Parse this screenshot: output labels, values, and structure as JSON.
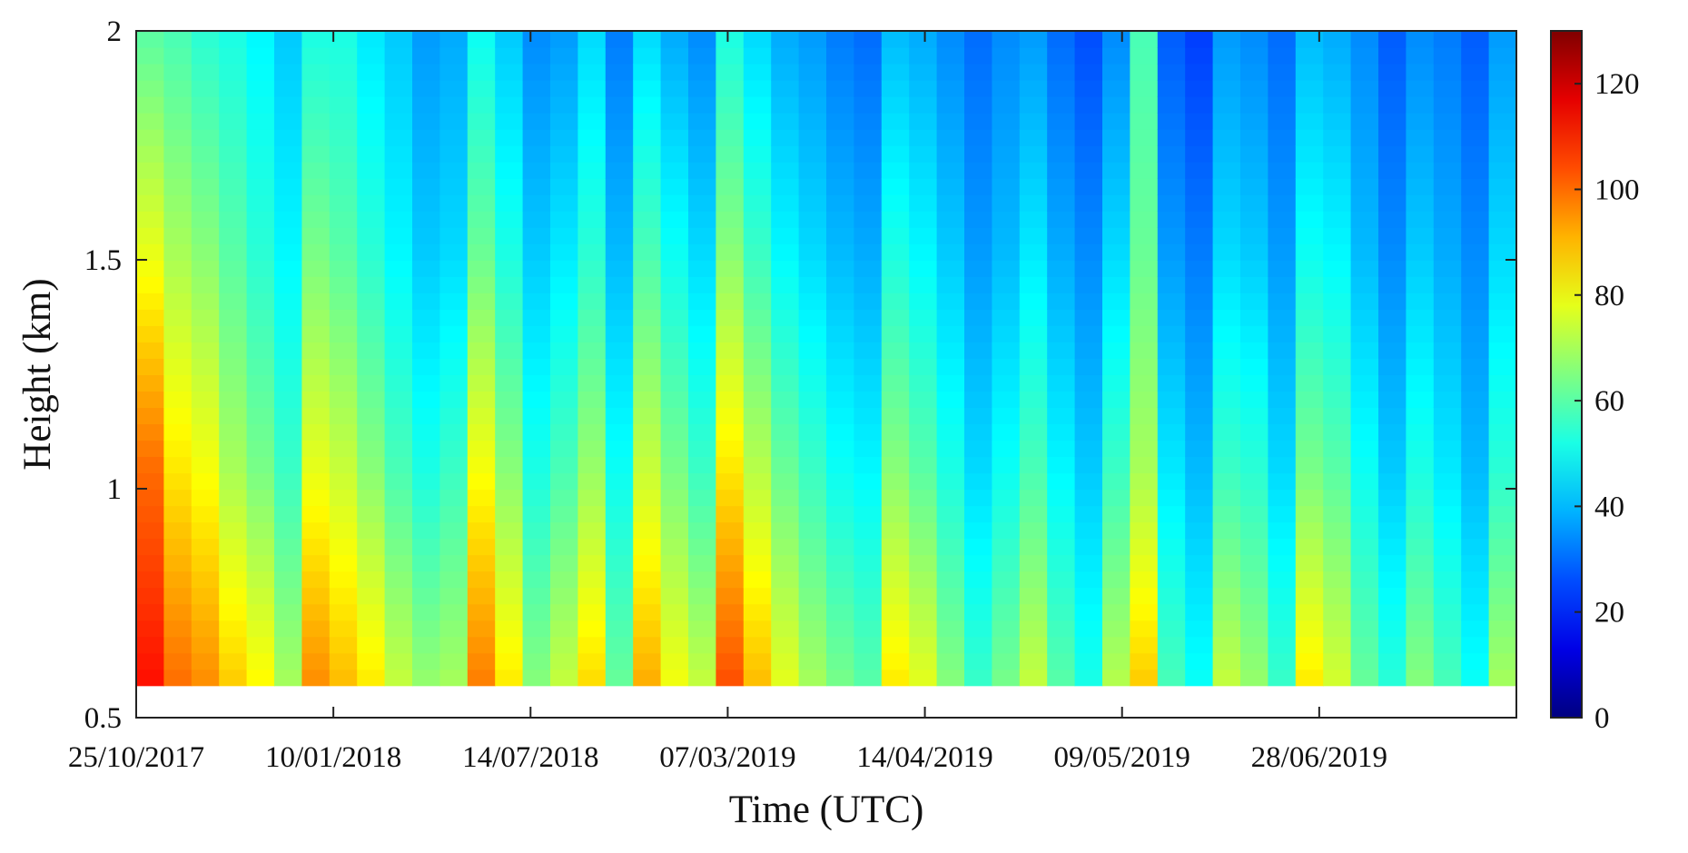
{
  "chart_data": {
    "type": "heatmap",
    "xlabel": "Time (UTC)",
    "ylabel": "Height (km)",
    "x_tick_labels": [
      "25/10/2017",
      "10/01/2018",
      "14/07/2018",
      "07/03/2019",
      "14/04/2019",
      "09/05/2019",
      "28/06/2019"
    ],
    "y_ticks": [
      0.5,
      1,
      1.5,
      2
    ],
    "y_tick_labels": [
      "0.5",
      "1",
      "1.5",
      "2"
    ],
    "ylim": [
      0.5,
      2
    ],
    "data_height_range_km": [
      0.57,
      2.0
    ],
    "colorbar": {
      "colormap": "jet",
      "range": [
        0,
        130
      ],
      "ticks": [
        0,
        20,
        40,
        60,
        80,
        100,
        120
      ],
      "tick_labels": [
        "0",
        "20",
        "40",
        "60",
        "80",
        "100",
        "120"
      ]
    },
    "series": [
      {
        "values": [
          112,
          100,
          96,
          88,
          82,
          70,
          96,
          90,
          84,
          74,
          68,
          70,
          98,
          84,
          66,
          74,
          86,
          62,
          92,
          80,
          74,
          104,
          90,
          78,
          70,
          64,
          60,
          84,
          78,
          66,
          56,
          64,
          74,
          60,
          52,
          72,
          88,
          58,
          50,
          74,
          68,
          56,
          84,
          76,
          62,
          54,
          66,
          58,
          50,
          70
        ]
      },
      {
        "values": [
          100,
          84,
          80,
          70,
          64,
          56,
          78,
          74,
          66,
          58,
          52,
          56,
          80,
          66,
          52,
          58,
          68,
          50,
          74,
          64,
          56,
          84,
          72,
          62,
          56,
          50,
          48,
          66,
          60,
          52,
          44,
          50,
          58,
          48,
          42,
          56,
          70,
          46,
          40,
          56,
          54,
          44,
          64,
          60,
          50,
          42,
          52,
          46,
          40,
          54
        ]
      },
      {
        "values": [
          78,
          70,
          66,
          60,
          54,
          48,
          64,
          60,
          54,
          48,
          42,
          44,
          62,
          52,
          42,
          46,
          54,
          40,
          58,
          50,
          44,
          66,
          56,
          48,
          44,
          40,
          38,
          52,
          48,
          42,
          36,
          40,
          46,
          38,
          34,
          44,
          62,
          36,
          32,
          44,
          42,
          36,
          50,
          48,
          40,
          34,
          42,
          38,
          34,
          44
        ]
      },
      {
        "values": [
          60,
          58,
          54,
          52,
          48,
          42,
          52,
          52,
          46,
          42,
          36,
          38,
          50,
          42,
          34,
          36,
          44,
          32,
          44,
          38,
          34,
          52,
          44,
          38,
          36,
          32,
          30,
          40,
          38,
          34,
          30,
          34,
          36,
          30,
          26,
          34,
          58,
          28,
          24,
          36,
          34,
          30,
          40,
          38,
          34,
          28,
          34,
          32,
          28,
          36
        ]
      }
    ]
  }
}
